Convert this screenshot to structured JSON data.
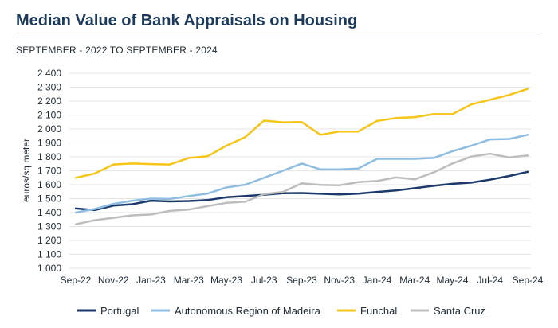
{
  "header": {
    "title": "Median Value of Bank Appraisals on Housing",
    "subtitle": "SEPTEMBER - 2022 TO SEPTEMBER - 2024"
  },
  "chart_data": {
    "type": "line",
    "title": "Median Value of Bank Appraisals on Housing",
    "subtitle": "SEPTEMBER - 2022 TO SEPTEMBER - 2024",
    "ylabel": "euros/sq meter",
    "xlabel": "",
    "ylim": [
      1000,
      2400
    ],
    "y_ticks": [
      1000,
      1100,
      1200,
      1300,
      1400,
      1500,
      1600,
      1700,
      1800,
      1900,
      2000,
      2100,
      2200,
      2300,
      2400
    ],
    "y_tick_labels": [
      "1 000",
      "1 100",
      "1 200",
      "1 300",
      "1 400",
      "1 500",
      "1 600",
      "1 700",
      "1 800",
      "1 900",
      "2 000",
      "2 100",
      "2 200",
      "2 300",
      "2 400"
    ],
    "grid": true,
    "legend_position": "bottom",
    "categories": [
      "Sep-22",
      "Oct-22",
      "Nov-22",
      "Dec-22",
      "Jan-23",
      "Feb-23",
      "Mar-23",
      "Apr-23",
      "May-23",
      "Jun-23",
      "Jul-23",
      "Aug-23",
      "Sep-23",
      "Oct-23",
      "Nov-23",
      "Dec-23",
      "Jan-24",
      "Feb-24",
      "Mar-24",
      "Apr-24",
      "May-24",
      "Jun-24",
      "Jul-24",
      "Aug-24",
      "Sep-24"
    ],
    "x_tick_labels": [
      "Sep-22",
      "Nov-22",
      "Jan-23",
      "Mar-23",
      "May-23",
      "Jul-23",
      "Sep-23",
      "Nov-23",
      "Jan-24",
      "Mar-24",
      "May-24",
      "Jul-24",
      "Sep-24"
    ],
    "series": [
      {
        "name": "Portugal",
        "color": "#1b3a6b",
        "values": [
          1429,
          1418,
          1450,
          1460,
          1485,
          1480,
          1483,
          1490,
          1510,
          1518,
          1528,
          1538,
          1540,
          1535,
          1530,
          1536,
          1548,
          1558,
          1575,
          1592,
          1606,
          1615,
          1636,
          1662,
          1692
        ]
      },
      {
        "name": "Autonomous Region of Madeira",
        "color": "#8fbde0",
        "values": [
          1400,
          1425,
          1462,
          1485,
          1500,
          1498,
          1518,
          1536,
          1580,
          1600,
          1650,
          1700,
          1752,
          1710,
          1710,
          1716,
          1786,
          1786,
          1786,
          1792,
          1840,
          1880,
          1925,
          1928,
          1958
        ]
      },
      {
        "name": "Funchal",
        "color": "#f5c518",
        "values": [
          1650,
          1680,
          1745,
          1752,
          1748,
          1745,
          1792,
          1804,
          1880,
          1942,
          2060,
          2048,
          2050,
          1958,
          1982,
          1982,
          2058,
          2078,
          2085,
          2106,
          2106,
          2176,
          2210,
          2244,
          2288
        ]
      },
      {
        "name": "Santa Cruz",
        "color": "#bdbdbd",
        "values": [
          1316,
          1345,
          1362,
          1380,
          1386,
          1412,
          1421,
          1446,
          1470,
          1478,
          1532,
          1548,
          1610,
          1598,
          1596,
          1618,
          1626,
          1652,
          1638,
          1688,
          1752,
          1802,
          1822,
          1796,
          1810
        ]
      }
    ]
  }
}
